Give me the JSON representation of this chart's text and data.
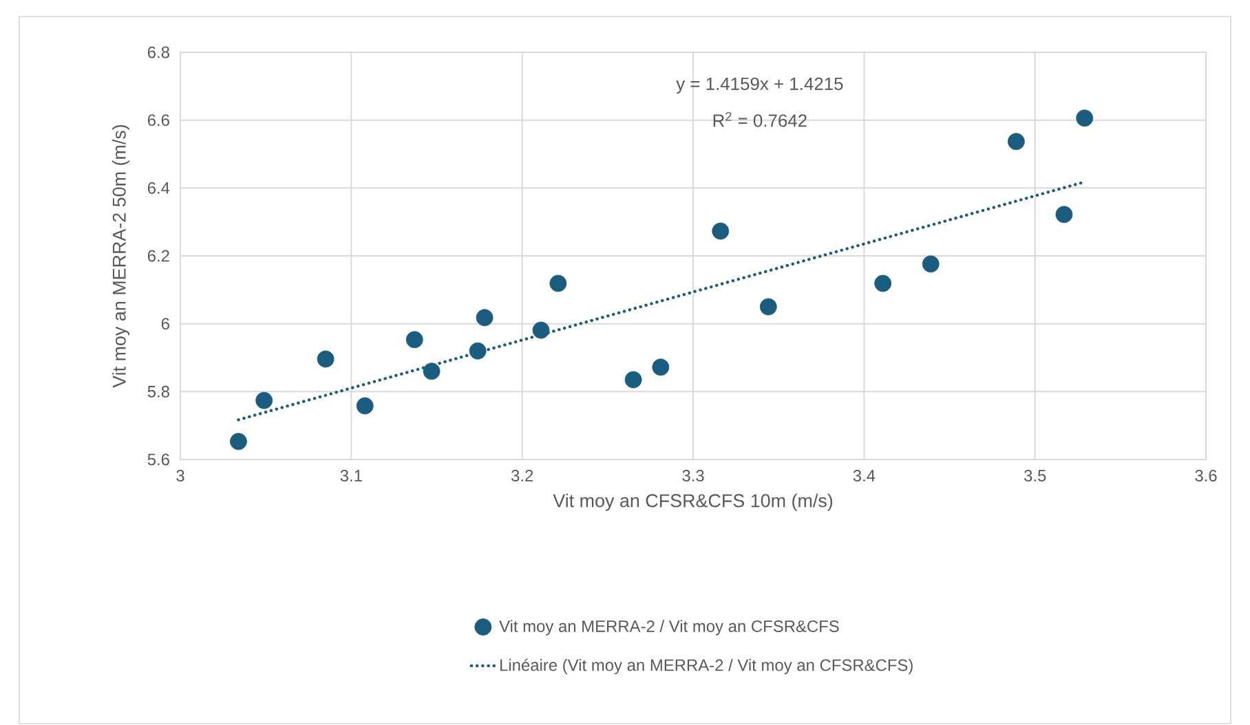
{
  "chart_data": {
    "type": "scatter",
    "xlabel": "Vit moy an CFSR&CFS 10m (m/s)",
    "ylabel": "Vit moy an MERRA-2 50m (m/s)",
    "annotations": [
      "y = 1.4159x + 1.4215",
      "R$^{2}$ = 0.7642"
    ],
    "xlim": [
      3,
      3.6
    ],
    "xticks": [
      3,
      3.1,
      3.2,
      3.3,
      3.4,
      3.5,
      3.6
    ],
    "ylim": [
      5.6,
      6.8
    ],
    "yticks": [
      5.6,
      5.8,
      6,
      6.2,
      6.4,
      6.6,
      6.8
    ],
    "grid": true,
    "legend": "bottom",
    "series": [
      {
        "name": "Vit moy an MERRA-2 / Vit moy an CFSR&CFS",
        "marker": "circle",
        "color": "#1a5d7e",
        "x": [
          3.034,
          3.049,
          3.085,
          3.108,
          3.137,
          3.147,
          3.174,
          3.178,
          3.211,
          3.221,
          3.265,
          3.281,
          3.316,
          3.344,
          3.411,
          3.439,
          3.489,
          3.517,
          3.529
        ],
        "values": [
          5.653,
          5.774,
          5.896,
          5.758,
          5.953,
          5.86,
          5.92,
          6.018,
          5.981,
          6.119,
          5.835,
          5.872,
          6.273,
          6.05,
          6.119,
          6.176,
          6.537,
          6.322,
          6.606
        ]
      },
      {
        "name": "Linéaire (Vit moy an MERRA-2 / Vit moy an CFSR&CFS)",
        "type": "line",
        "marker": "none",
        "line_style": "dotted",
        "color": "#1a5d7e",
        "x": [
          3.034,
          3.529
        ],
        "values": [
          5.717,
          6.418
        ]
      }
    ]
  }
}
